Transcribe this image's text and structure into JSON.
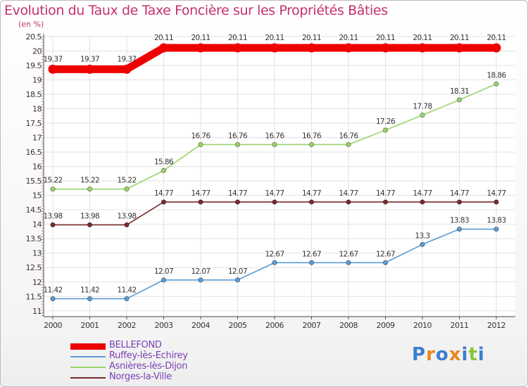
{
  "header": {
    "title": "Evolution du Taux de Taxe Foncière sur les Propriétés Bâties",
    "subtitle": "(en %)"
  },
  "logo": {
    "text": "Proxiti",
    "letters": [
      "P",
      "r",
      "o",
      "x",
      "i",
      "t",
      "i"
    ],
    "colors": [
      "#3a7fd0",
      "#e8881b",
      "#3a7fd0",
      "#e8881b",
      "#3a7fd0",
      "#89c43a",
      "#3a7fd0"
    ]
  },
  "chart_data": {
    "type": "line",
    "title": "Evolution du Taux de Taxe Foncière sur les Propriétés Bâties",
    "ylabel": "(en %)",
    "xlabel": "",
    "ylim": [
      10.8,
      20.5
    ],
    "yticks": [
      "11",
      "11.5",
      "12",
      "12.5",
      "13",
      "13.5",
      "14",
      "14.5",
      "15",
      "15.5",
      "16",
      "16.5",
      "17",
      "17.5",
      "18",
      "18.5",
      "19",
      "19.5",
      "20",
      "20.5"
    ],
    "x": [
      "2000",
      "2001",
      "2002",
      "2003",
      "2004",
      "2005",
      "2006",
      "2007",
      "2008",
      "2009",
      "2010",
      "2011",
      "2012"
    ],
    "grid": true,
    "series": [
      {
        "name": "BELLEFOND",
        "color": "#ee0000",
        "values": [
          19.37,
          19.37,
          19.37,
          20.11,
          20.11,
          20.11,
          20.11,
          20.11,
          20.11,
          20.11,
          20.11,
          20.11,
          20.11
        ],
        "labels": [
          "19.37",
          "19.37",
          "19.37",
          "20.11",
          "20.11",
          "20.11",
          "20.11",
          "20.11",
          "20.11",
          "20.11",
          "20.11",
          "20.11",
          "20.11"
        ]
      },
      {
        "name": "Ruffey-lès-Echirey",
        "color": "#5b9bd2",
        "values": [
          11.42,
          11.42,
          11.42,
          12.07,
          12.07,
          12.07,
          12.67,
          12.67,
          12.67,
          12.67,
          13.3,
          13.83,
          13.83
        ],
        "labels": [
          "11.42",
          "11.42",
          "11.42",
          "12.07",
          "12.07",
          "12.07",
          "12.67",
          "12.67",
          "12.67",
          "12.67",
          "13.3",
          "13.83",
          "13.83"
        ]
      },
      {
        "name": "Asnières-lès-Dijon",
        "color": "#9ad46a",
        "values": [
          15.22,
          15.22,
          15.22,
          15.86,
          16.76,
          16.76,
          16.76,
          16.76,
          16.76,
          17.26,
          17.78,
          18.31,
          18.86
        ],
        "labels": [
          "15.22",
          "15.22",
          "15.22",
          "15.86",
          "16.76",
          "16.76",
          "16.76",
          "16.76",
          "16.76",
          "17.26",
          "17.78",
          "18.31",
          "18.86"
        ]
      },
      {
        "name": "Norges-la-Ville",
        "color": "#7a2b2b",
        "values": [
          13.98,
          13.98,
          13.98,
          14.77,
          14.77,
          14.77,
          14.77,
          14.77,
          14.77,
          14.77,
          14.77,
          14.77,
          14.77
        ],
        "labels": [
          "13.98",
          "13.98",
          "13.98",
          "14.77",
          "14.77",
          "14.77",
          "14.77",
          "14.77",
          "14.77",
          "14.77",
          "14.77",
          "14.77",
          "14.77"
        ]
      }
    ]
  }
}
